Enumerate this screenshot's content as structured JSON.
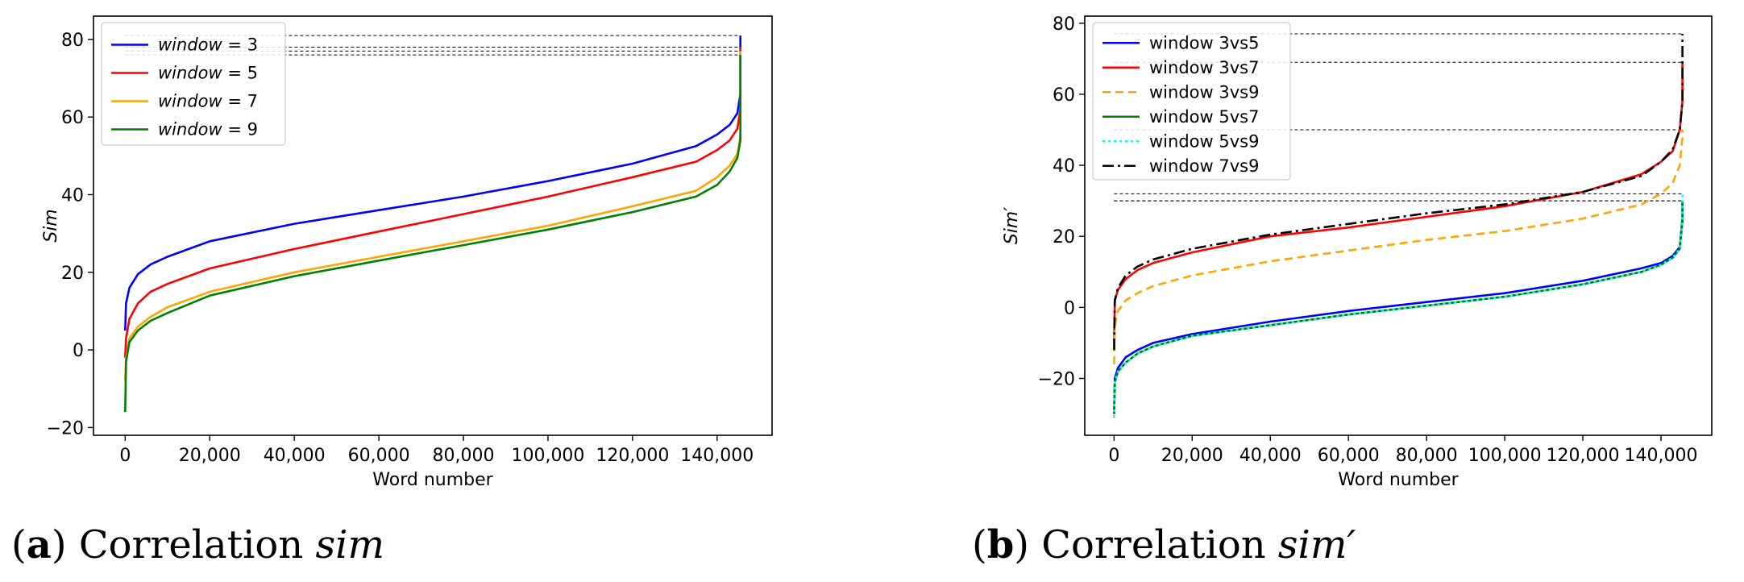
{
  "captions": [
    {
      "open": "(",
      "letter": "a",
      "close": ")",
      "text": "Correlation",
      "symbol": "sim"
    },
    {
      "open": "(",
      "letter": "b",
      "close": ")",
      "text": "Correlation",
      "symbol": "sim′"
    }
  ],
  "chart_data": [
    {
      "type": "line",
      "xlabel": "Word number",
      "ylabel": "Sim",
      "xlim": [
        -7500,
        153000
      ],
      "ylim": [
        -22,
        86
      ],
      "xticks": [
        0,
        20000,
        40000,
        60000,
        80000,
        100000,
        120000,
        140000
      ],
      "xtick_labels": [
        "0",
        "20,000",
        "40,000",
        "60,000",
        "80,000",
        "100,000",
        "120,000",
        "140,000"
      ],
      "yticks": [
        -20,
        0,
        20,
        40,
        60,
        80
      ],
      "ytick_labels": [
        "−20",
        "0",
        "20",
        "40",
        "60",
        "80"
      ],
      "legend_position": "upper-left",
      "x": [
        0,
        200,
        1000,
        3000,
        6000,
        10000,
        20000,
        40000,
        60000,
        80000,
        100000,
        120000,
        135000,
        140000,
        143000,
        144800,
        145500
      ],
      "series": [
        {
          "name": "window = 3",
          "label_prefix": "window",
          "label_value": "= 3",
          "color": "#0000ff",
          "dash": "",
          "values": [
            5,
            12,
            16,
            19.5,
            22,
            24,
            28,
            32.5,
            36,
            39.5,
            43.5,
            48,
            52.5,
            55.5,
            58,
            61,
            66
          ],
          "max": 81
        },
        {
          "name": "window = 5",
          "label_prefix": "window",
          "label_value": "= 5",
          "color": "#ff0000",
          "dash": "",
          "values": [
            -2,
            3,
            8,
            12,
            15,
            17,
            21,
            26,
            30.5,
            35,
            39.5,
            44.5,
            48.5,
            51.5,
            54,
            57,
            62
          ],
          "max": 78
        },
        {
          "name": "window = 7",
          "label_prefix": "window",
          "label_value": "= 7",
          "color": "#ffa500",
          "dash": "",
          "values": [
            -8,
            -2,
            3,
            6,
            8.5,
            11,
            15,
            20,
            24,
            28,
            32,
            37,
            41,
            44.5,
            47.5,
            50.5,
            55
          ],
          "max": 77
        },
        {
          "name": "window = 9",
          "label_prefix": "window",
          "label_value": "= 9",
          "color": "#008000",
          "dash": "",
          "values": [
            -16,
            -3,
            2,
            5,
            7.5,
            9.5,
            14,
            19,
            23,
            27,
            31,
            35.5,
            39.5,
            42.5,
            46,
            49.5,
            54
          ],
          "max": 76
        }
      ]
    },
    {
      "type": "line",
      "xlabel": "Word number",
      "ylabel": "Sim′",
      "xlim": [
        -7500,
        153000
      ],
      "ylim": [
        -36,
        82
      ],
      "xticks": [
        0,
        20000,
        40000,
        60000,
        80000,
        100000,
        120000,
        140000
      ],
      "xtick_labels": [
        "0",
        "20,000",
        "40,000",
        "60,000",
        "80,000",
        "100,000",
        "120,000",
        "140,000"
      ],
      "yticks": [
        -20,
        0,
        20,
        40,
        60,
        80
      ],
      "ytick_labels": [
        "−20",
        "0",
        "20",
        "40",
        "60",
        "80"
      ],
      "legend_position": "upper-left",
      "x": [
        0,
        200,
        1000,
        3000,
        6000,
        10000,
        20000,
        40000,
        60000,
        80000,
        100000,
        120000,
        135000,
        140000,
        143000,
        144800,
        145500
      ],
      "series": [
        {
          "name": "window 3vs5",
          "color": "#0000ff",
          "dash": "",
          "values": [
            -30,
            -20,
            -17,
            -14,
            -12,
            -10,
            -7.5,
            -4,
            -1,
            1.5,
            4,
            7.5,
            11,
            12.5,
            14.5,
            17,
            25
          ],
          "max": 30
        },
        {
          "name": "window 3vs7",
          "color": "#ff0000",
          "dash": "",
          "values": [
            -10,
            2,
            5,
            8,
            10.5,
            12.5,
            15.5,
            20,
            22.5,
            25.5,
            28.5,
            32.5,
            37.5,
            41,
            44,
            50,
            58
          ],
          "max": 69
        },
        {
          "name": "window 3vs9",
          "color": "#ffa500",
          "dash": "10,6",
          "values": [
            -16,
            -5,
            -1,
            2,
            4,
            6,
            9,
            13,
            16,
            19,
            21.5,
            25,
            29,
            32,
            35,
            40,
            48
          ],
          "max": 50
        },
        {
          "name": "window 5vs7",
          "color": "#008000",
          "dash": "",
          "values": [
            -30,
            -21,
            -18,
            -15.5,
            -13,
            -11,
            -8,
            -5,
            -2,
            0.5,
            3,
            6.5,
            10,
            12,
            14,
            16.5,
            24
          ],
          "max": 30
        },
        {
          "name": "window 5vs9",
          "color": "#00ffff",
          "dash": "3,4",
          "values": [
            -31,
            -21,
            -18,
            -15.5,
            -13,
            -11,
            -8,
            -5,
            -2,
            0.5,
            3,
            6.5,
            10,
            12,
            14,
            16.5,
            24
          ],
          "max": 32
        },
        {
          "name": "window 7vs9",
          "color": "#000000",
          "dash": "14,5,3,5",
          "values": [
            -12,
            2,
            5.5,
            9,
            11.5,
            13.5,
            16.5,
            20.5,
            23.5,
            26.5,
            29,
            32.5,
            37,
            41,
            44.5,
            50,
            58
          ],
          "max": 77
        }
      ]
    }
  ]
}
